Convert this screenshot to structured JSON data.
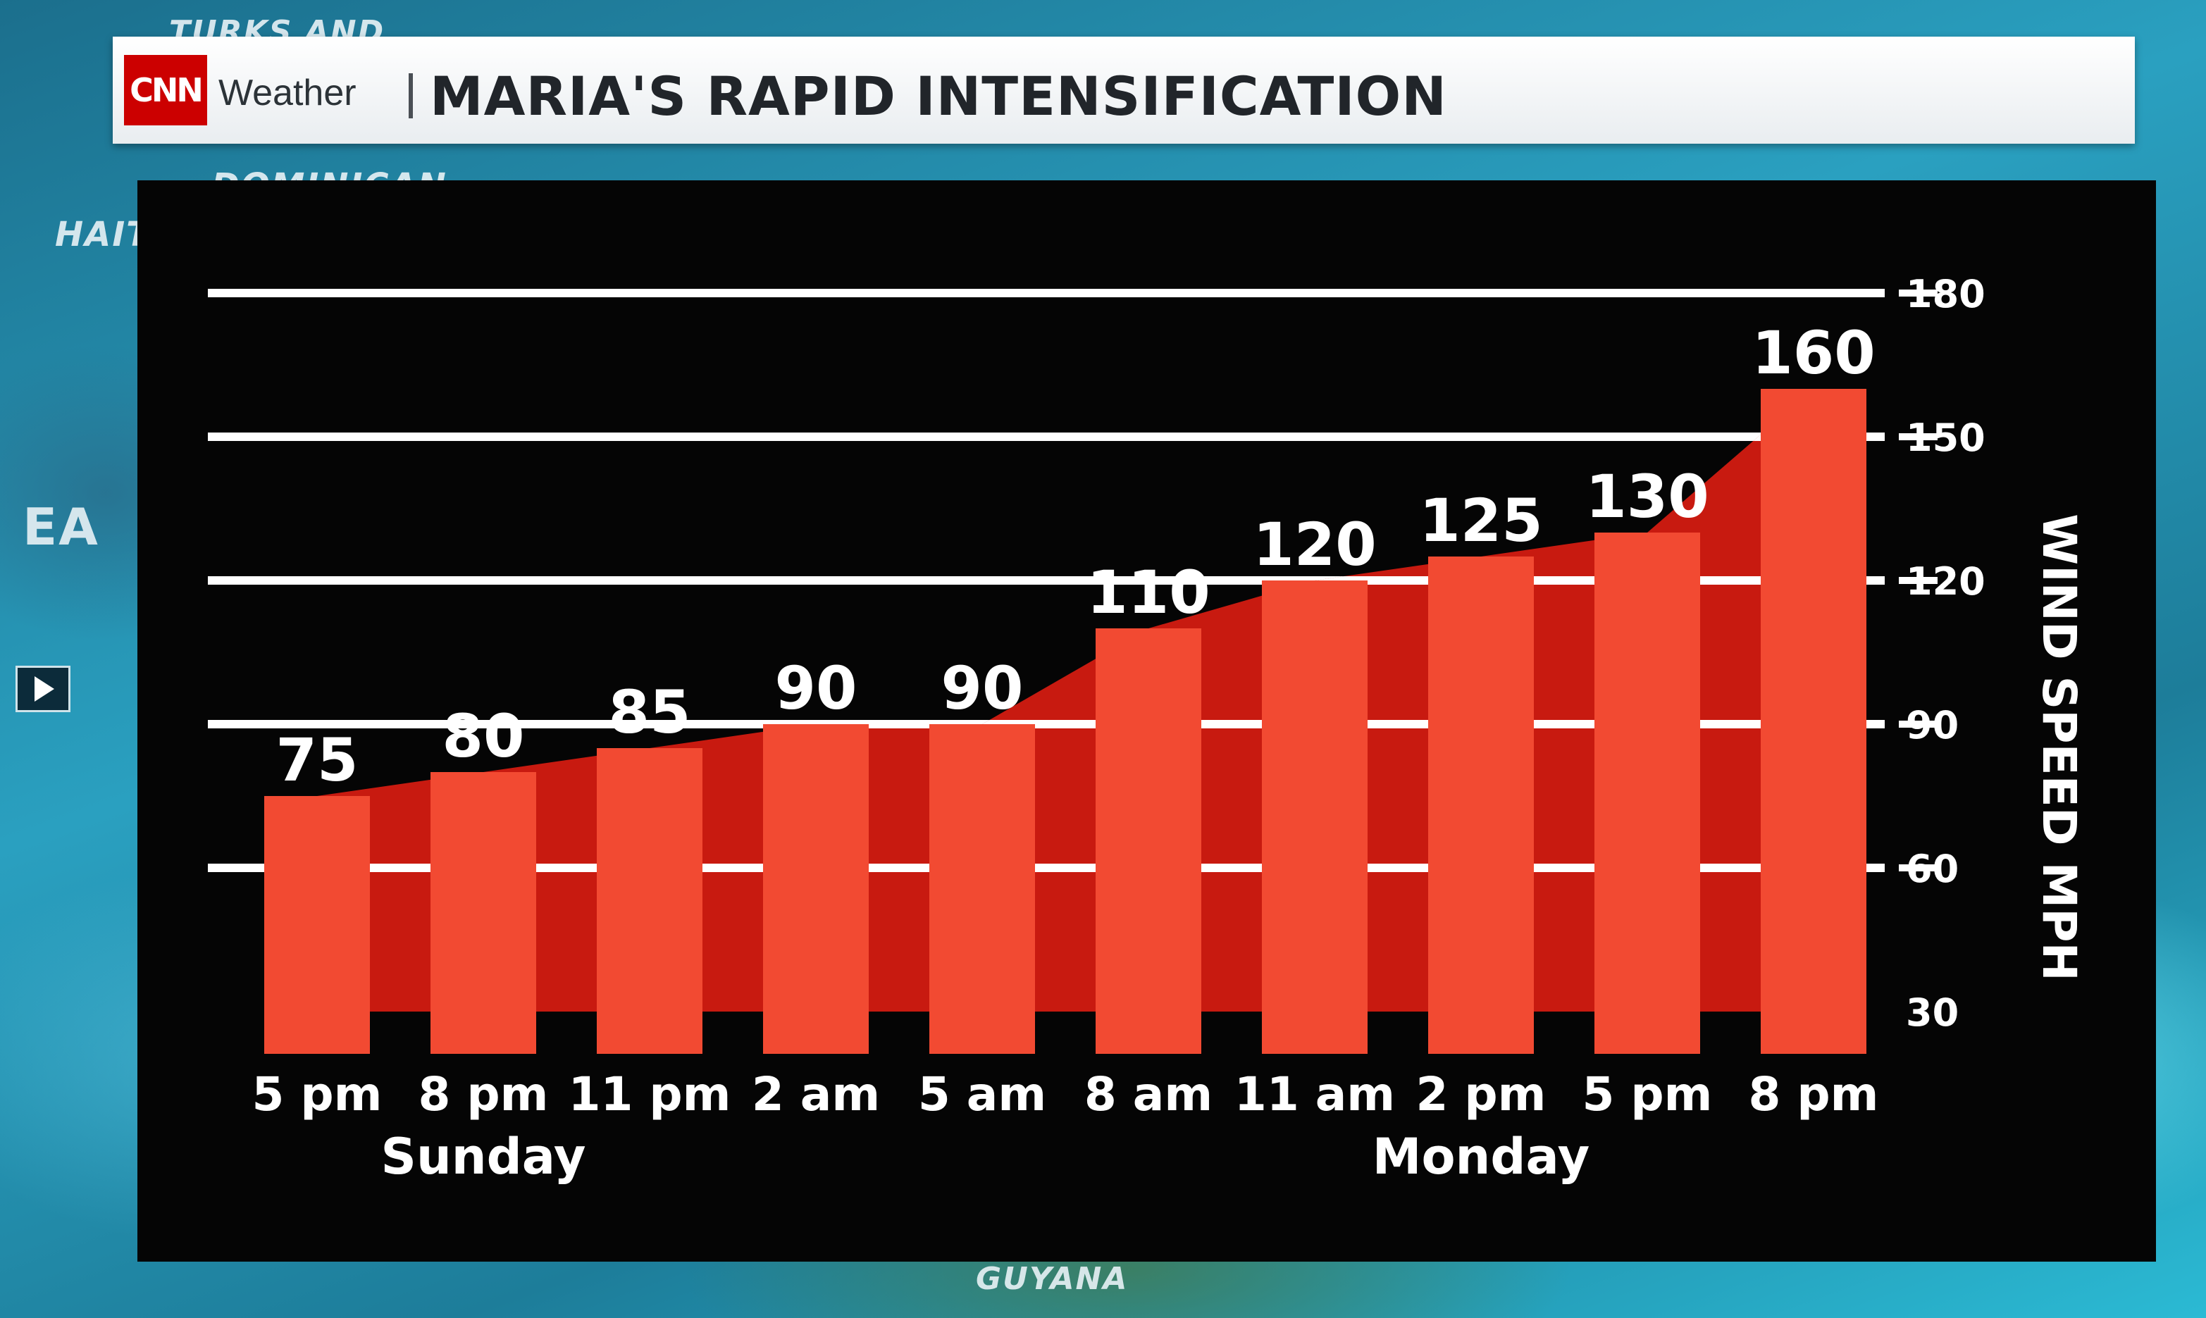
{
  "header": {
    "brand_logo": "CNN",
    "brand_section": "Weather",
    "title": "MARIA'S RAPID INTENSIFICATION"
  },
  "map_labels": [
    "TURKS AND",
    "DOMINICAN",
    "HAITI",
    "EA",
    "GUYANA"
  ],
  "colors": {
    "bar": "#f24a32",
    "area": "#c81a10",
    "grid": "#ffffff",
    "panel": "#050505",
    "brand_red": "#cc0000"
  },
  "chart_data": {
    "type": "bar",
    "title": "MARIA'S RAPID INTENSIFICATION",
    "ylabel": "WIND SPEED MPH",
    "xlabel": "",
    "ylim": [
      30,
      180
    ],
    "yticks": [
      30,
      60,
      90,
      120,
      150,
      180
    ],
    "grid": true,
    "categories": [
      "5 pm",
      "8 pm",
      "11 pm",
      "2 am",
      "5 am",
      "8 am",
      "11 am",
      "2 pm",
      "5 pm",
      "8 pm"
    ],
    "values": [
      75,
      80,
      85,
      90,
      90,
      110,
      120,
      125,
      130,
      160
    ],
    "day_labels": [
      {
        "label": "Sunday",
        "under": 1
      },
      {
        "label": "Monday",
        "under": 7
      }
    ]
  }
}
